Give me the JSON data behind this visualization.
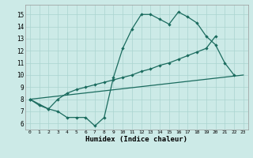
{
  "xlabel": "Humidex (Indice chaleur)",
  "xlim": [
    -0.5,
    23.5
  ],
  "ylim": [
    5.5,
    15.8
  ],
  "xticks": [
    0,
    1,
    2,
    3,
    4,
    5,
    6,
    7,
    8,
    9,
    10,
    11,
    12,
    13,
    14,
    15,
    16,
    17,
    18,
    19,
    20,
    21,
    22,
    23
  ],
  "yticks": [
    6,
    7,
    8,
    9,
    10,
    11,
    12,
    13,
    14,
    15
  ],
  "bg_color": "#cceae7",
  "line_color": "#1a6b5e",
  "grid_color": "#aad4d0",
  "line1_x": [
    0,
    1,
    2,
    3,
    4,
    5,
    6,
    7,
    8,
    9,
    10,
    11,
    12,
    13,
    14,
    15,
    16,
    17,
    18,
    19,
    20,
    21,
    22
  ],
  "line1_y": [
    8.0,
    7.5,
    7.2,
    7.0,
    6.5,
    6.5,
    6.5,
    5.8,
    6.5,
    9.8,
    12.2,
    13.8,
    15.0,
    15.0,
    14.6,
    14.2,
    15.2,
    14.8,
    14.3,
    13.2,
    12.5,
    11.0,
    10.0
  ],
  "line2_x": [
    0,
    2,
    3,
    4,
    5,
    6,
    7,
    8,
    9,
    10,
    11,
    12,
    13,
    14,
    15,
    16,
    17,
    18,
    19,
    20
  ],
  "line2_y": [
    8.0,
    7.2,
    8.0,
    8.5,
    8.8,
    9.0,
    9.2,
    9.4,
    9.6,
    9.8,
    10.0,
    10.3,
    10.5,
    10.8,
    11.0,
    11.3,
    11.6,
    11.9,
    12.2,
    13.2
  ],
  "line3_x": [
    0,
    23
  ],
  "line3_y": [
    8.0,
    10.0
  ]
}
